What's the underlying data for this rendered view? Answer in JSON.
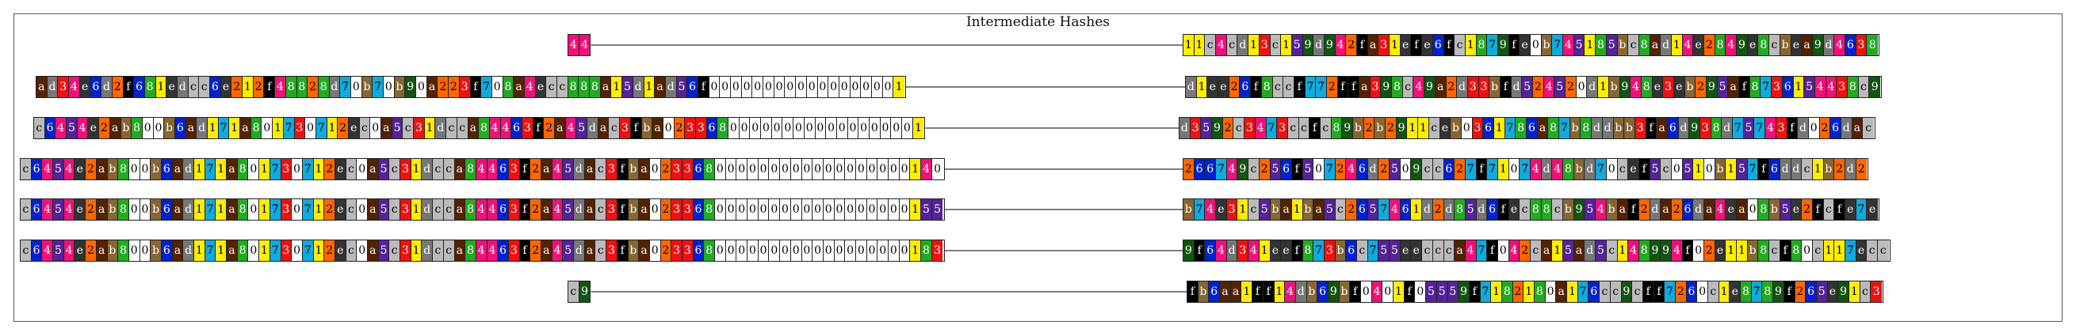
{
  "title": "Intermediate Hashes",
  "colors": {
    "0": "#ffffff",
    "1": "#ffee00",
    "2": "#ff6600",
    "3": "#ee1111",
    "4": "#ee1177",
    "5": "#552299",
    "6": "#0022cc",
    "7": "#11aadd",
    "8": "#22aa22",
    "9": "#115511",
    "a": "#552200",
    "b": "#886633",
    "c": "#bbbbbb",
    "d": "#777777",
    "e": "#333333",
    "f": "#000000"
  },
  "text_dark": "#000000",
  "text_light": "#ffffff",
  "rows": [
    {
      "left": "44",
      "right": "11c4cd13c159d942fa31efe6fc1879fe0b74518 5bc8ad14e2849e8cbea9d4638"
    },
    {
      "left": "ad34e6d2f681edcc6e212f48828d70b70b90a223f708a4ecc888a15d1ad56f000000000000000001",
      "right": "d1ee26f8ccf772ffa398c49a2d33bfd52452 0d1b948e3eb295af8736154438c9"
    },
    {
      "left": "c6454e2ab800b6ad171a80173071 2ec0a5c31dcca84463f2a45dac3fba023368000000000000000001",
      "right": "d359 2c3473ccfc89b2b291 1ceb0361786a87b8ddbb3fa6d938d757 4 3fd02 6dac"
    },
    {
      "left": "c6454e2ab800b6ad171a80173071 2ec0a5c31dcca84463f2a45dac3fba0233680000000000000000001 40",
      "right": "26674 9c256f5 0724 6d250 9cc627f7107 4d48bd70cef5c0510b157f6ddc1b2d2"
    },
    {
      "left": "c6454e2ab800b6ad171a80173071 2ec0a5c31dcca84463f2a45dac3fba0233680000000000000000001 55",
      "right": "b74e31c5ba1ba5c265746 1d2d85d6fec88cb954baf2da26da4ea08b5e2fcfe7e"
    },
    {
      "left": "c6454e2ab800b6ad171a80173071 2ec0a5c31dcca84463f2a45dac3fba0233680000000000000000001 83",
      "right": "9f6 4d341eef873b6c755eeccca47f042ca15ad5c14 8994f02e11b8cf80c117ecc"
    },
    {
      "left": "c9",
      "right": "fb6aa1ff14db69bf040 1f05559f7182180a176cc9cff726 0c1e87 89f265e91c3"
    }
  ]
}
